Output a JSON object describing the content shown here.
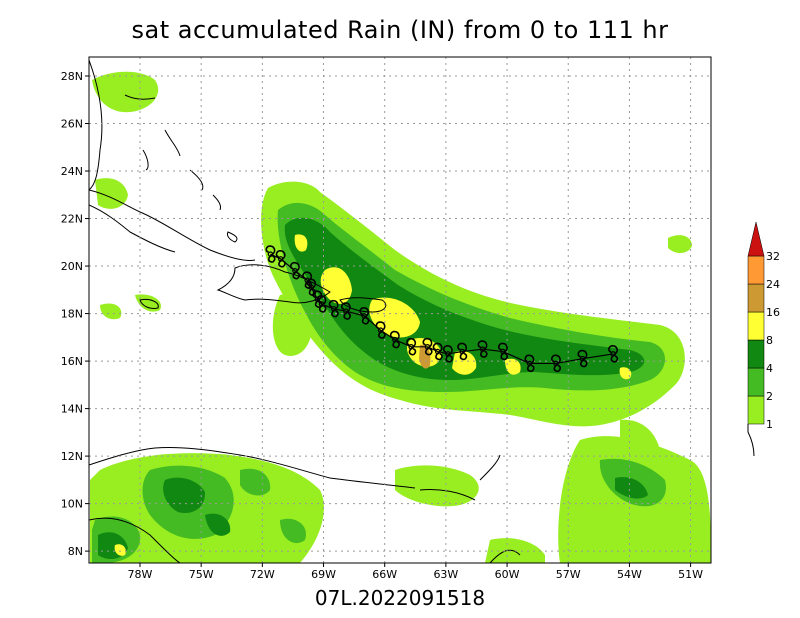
{
  "title": "sat accumulated Rain (IN) from 0 to 111 hr",
  "footer": "07L.2022091518",
  "map": {
    "lon_range": [
      -80.5,
      -50
    ],
    "lat_range": [
      7.5,
      28.8
    ],
    "lon_ticks": [
      -78,
      -75,
      -72,
      -69,
      -66,
      -63,
      -60,
      -57,
      -54,
      -51
    ],
    "lat_ticks": [
      8,
      10,
      12,
      14,
      16,
      18,
      20,
      22,
      24,
      26,
      28
    ],
    "lon_labels": [
      "78W",
      "75W",
      "72W",
      "69W",
      "66W",
      "63W",
      "60W",
      "57W",
      "54W",
      "51W"
    ],
    "lat_labels": [
      "8N",
      "10N",
      "12N",
      "14N",
      "16N",
      "18N",
      "20N",
      "22N",
      "24N",
      "26N",
      "28N"
    ],
    "grid": true
  },
  "legend": {
    "levels": [
      "1",
      "2",
      "4",
      "8",
      "16",
      "24",
      "32"
    ],
    "colors": [
      "#99ee22",
      "#44bb22",
      "#118811",
      "#ffff33",
      "#cc9933",
      "#ff9933",
      "#cc1111"
    ]
  },
  "track": {
    "symbol": "hurricane-symbol",
    "points": [
      [
        -54.8,
        16.3
      ],
      [
        -56.3,
        16.1
      ],
      [
        -57.6,
        15.9
      ],
      [
        -58.9,
        15.9
      ],
      [
        -60.2,
        16.4
      ],
      [
        -61.2,
        16.5
      ],
      [
        -62.2,
        16.4
      ],
      [
        -62.9,
        16.3
      ],
      [
        -63.4,
        16.4
      ],
      [
        -63.9,
        16.6
      ],
      [
        -64.7,
        16.6
      ],
      [
        -65.5,
        16.9
      ],
      [
        -66.2,
        17.3
      ],
      [
        -67.0,
        17.9
      ],
      [
        -67.9,
        18.1
      ],
      [
        -68.5,
        18.2
      ],
      [
        -69.1,
        18.4
      ],
      [
        -69.3,
        18.6
      ],
      [
        -69.6,
        19.1
      ],
      [
        -69.8,
        19.4
      ],
      [
        -70.4,
        19.8
      ],
      [
        -71.1,
        20.3
      ],
      [
        -71.6,
        20.5
      ]
    ]
  }
}
